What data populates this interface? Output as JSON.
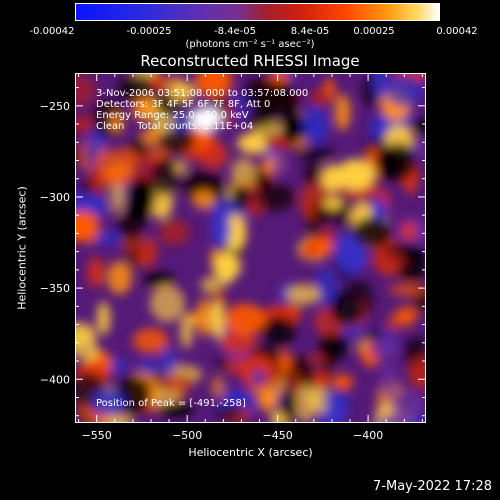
{
  "colorbar": {
    "ticks": [
      "-0.00042",
      "-0.00025",
      "-8.4e-05",
      "8.4e-05",
      "0.00025",
      "0.00042"
    ],
    "units_label": "(photons cm⁻² s⁻¹ asec⁻²)"
  },
  "chart_data": {
    "type": "heatmap",
    "title": "Reconstructed RHESSI Image",
    "xlabel": "Heliocentric X (arcsec)",
    "ylabel": "Heliocentric Y (arcsec)",
    "xlim": [
      -562,
      -368
    ],
    "ylim": [
      -424,
      -232
    ],
    "xticks": [
      -550,
      -500,
      -450,
      -400
    ],
    "yticks": [
      -250,
      -300,
      -350,
      -400
    ],
    "colorbar_range": [
      -0.00042,
      0.00042
    ],
    "peak_position": [
      -491,
      -258
    ]
  },
  "annotations": {
    "time_range": "3-Nov-2006 03:51:08.000 to 03:57:08.000",
    "detectors": "Detectors: 3F 4F 5F 6F 7F 8F, Att 0",
    "energy": "Energy Range: 25.0 - 50.0 keV",
    "clean": "Clean    Total counts: 2.11E+04",
    "peak": "Position of Peak = [-491,-258]"
  },
  "timestamp": "7-May-2022 17:28"
}
